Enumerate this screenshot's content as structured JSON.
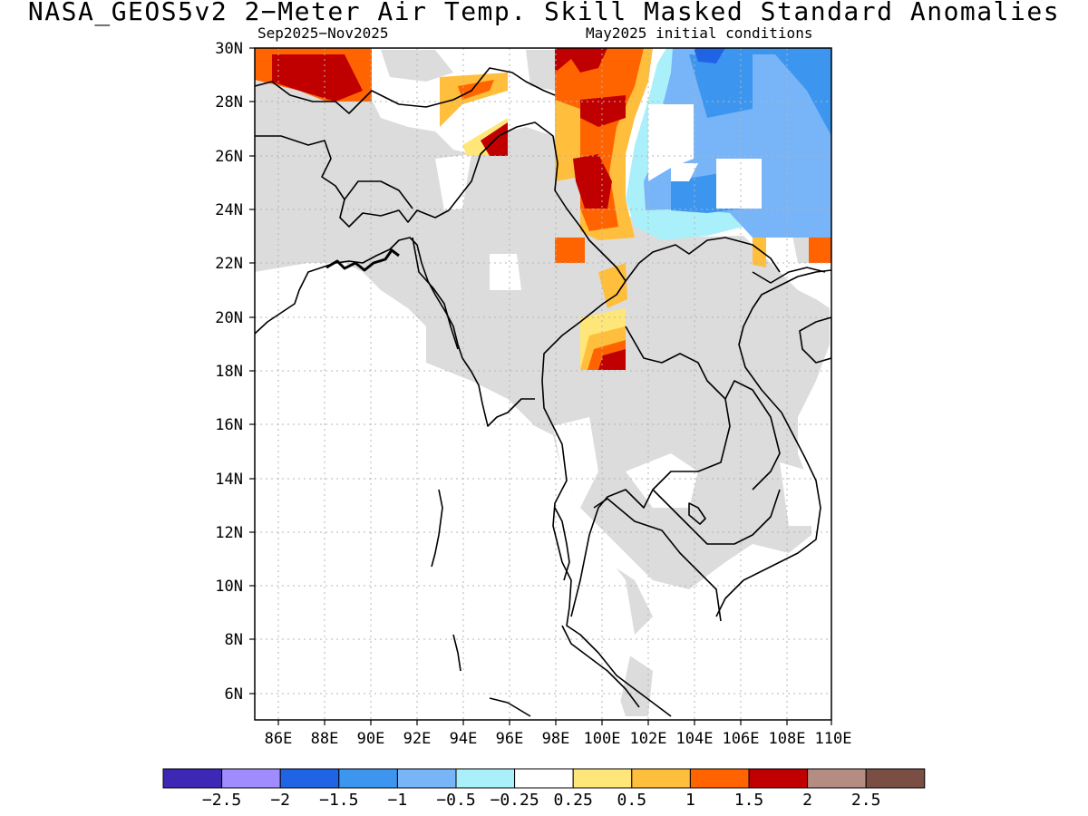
{
  "title": "NASA_GEOS5v2 2−Meter Air Temp. Skill Masked Standard Anomalies",
  "subtitle_left": "Sep2025−Nov2025",
  "subtitle_right": "May2025 initial conditions",
  "lat_labels": [
    "30N",
    "28N",
    "26N",
    "24N",
    "22N",
    "20N",
    "18N",
    "16N",
    "14N",
    "12N",
    "10N",
    "8N",
    "6N"
  ],
  "lon_labels": [
    "86E",
    "88E",
    "90E",
    "92E",
    "94E",
    "96E",
    "98E",
    "100E",
    "102E",
    "104E",
    "106E",
    "108E",
    "110E"
  ],
  "colorbar": {
    "colors": [
      "#3c28b4",
      "#a08cff",
      "#2064e6",
      "#3c96f0",
      "#78b4f8",
      "#aaf0fa",
      "#ffffff",
      "#ffe678",
      "#ffbe3c",
      "#ff6400",
      "#c00000",
      "#b48c82",
      "#7a4e42"
    ],
    "labels": [
      "−2.5",
      "−2",
      "−1.5",
      "−1",
      "−0.5",
      "−0.25",
      "0.25",
      "0.5",
      "1",
      "1.5",
      "2",
      "2.5"
    ]
  },
  "colors": {
    "mask_gray": "#dcdcdc",
    "frame": "#000000",
    "grid": "#b4b4b4"
  }
}
